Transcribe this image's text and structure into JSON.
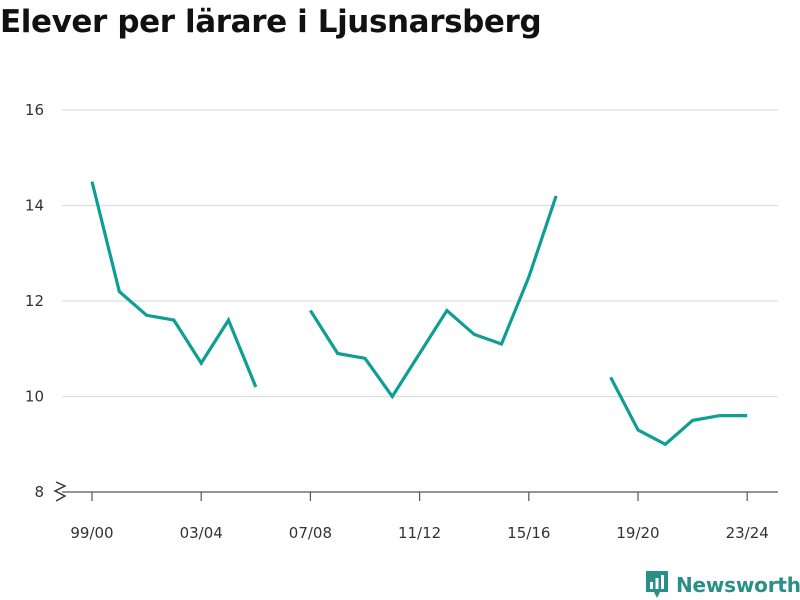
{
  "chart_data": {
    "type": "line",
    "title": "Elever per lärare i Ljusnarsberg",
    "categories": [
      "99/00",
      "00/01",
      "01/02",
      "02/03",
      "03/04",
      "04/05",
      "05/06",
      "06/07",
      "07/08",
      "08/09",
      "09/10",
      "10/11",
      "11/12",
      "12/13",
      "13/14",
      "14/15",
      "15/16",
      "16/17",
      "17/18",
      "18/19",
      "19/20",
      "20/21",
      "21/22",
      "22/23",
      "23/24"
    ],
    "x_tick_labels": [
      "99/00",
      "03/04",
      "07/08",
      "11/12",
      "15/16",
      "19/20",
      "23/24"
    ],
    "series": [
      {
        "values": [
          14.5,
          12.2,
          11.7,
          11.6,
          10.7,
          11.6,
          10.2,
          null,
          11.8,
          10.9,
          10.8,
          10.0,
          10.9,
          11.8,
          11.3,
          11.1,
          12.5,
          14.2,
          null,
          10.4,
          9.3,
          9.0,
          9.5,
          9.6,
          9.6
        ]
      }
    ],
    "y_ticks": [
      8,
      10,
      12,
      14,
      16
    ],
    "ylim": [
      8,
      16
    ],
    "y_axis_break": true,
    "grid": true,
    "line_color": "#0e9e94",
    "grid_color": "#dddddd"
  },
  "brand": {
    "name": "Newsworthy",
    "icon": "bar-chart-logo-icon",
    "color": "#2a8f86"
  }
}
